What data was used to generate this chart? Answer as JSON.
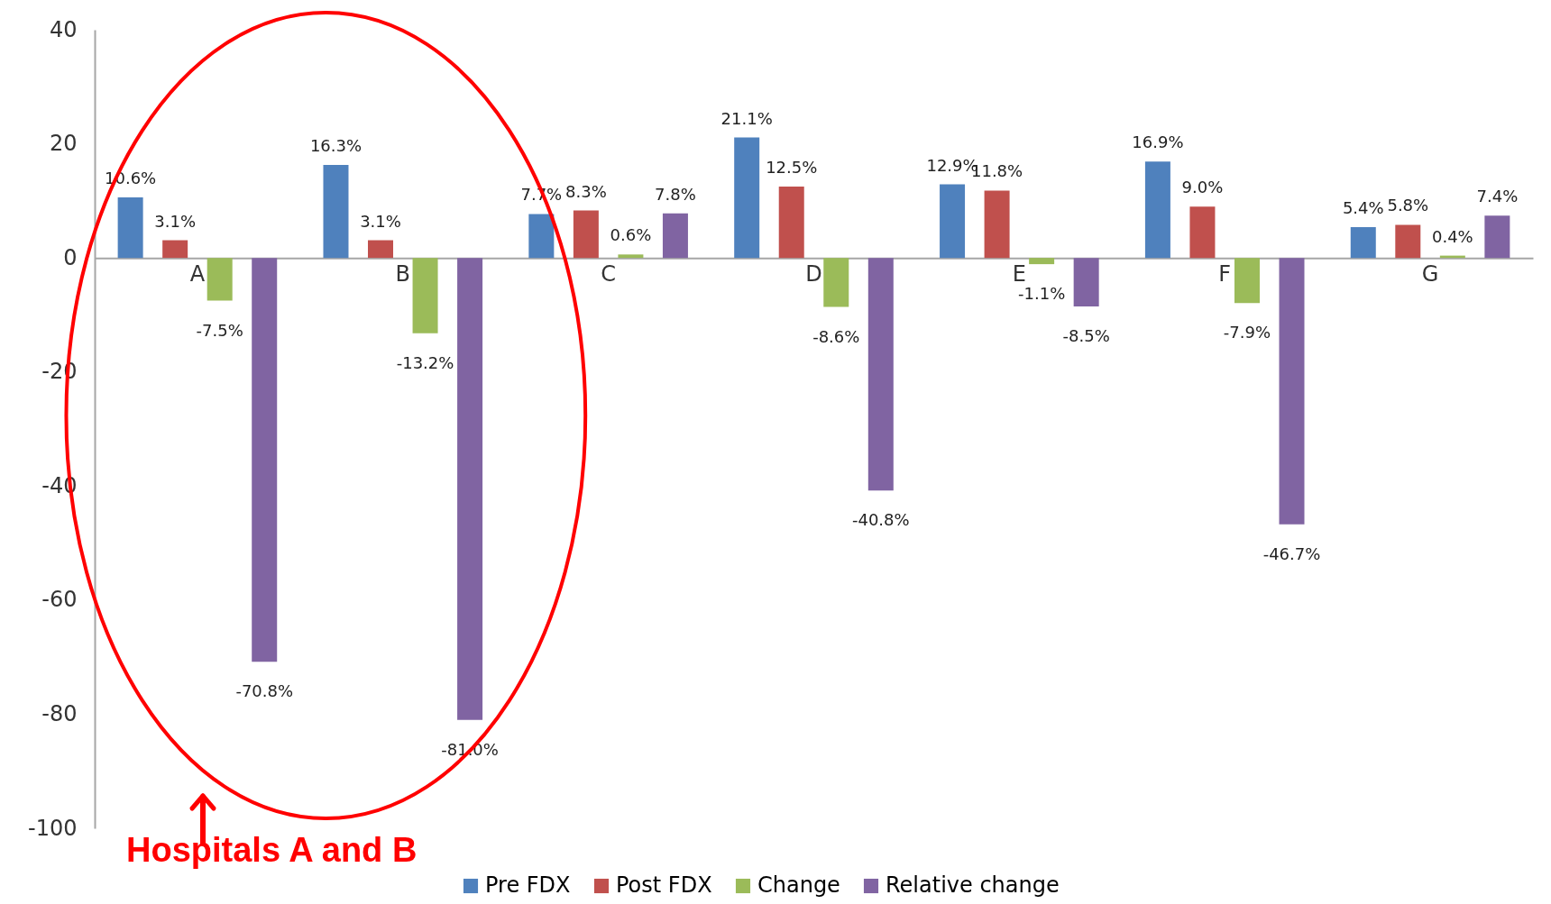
{
  "chart_data": {
    "type": "bar",
    "categories": [
      "A",
      "B",
      "C",
      "D",
      "E",
      "F",
      "G"
    ],
    "series": [
      {
        "name": "Pre FDX",
        "color": "#4f81bd",
        "values": [
          10.6,
          16.3,
          7.7,
          21.1,
          12.9,
          16.9,
          5.4
        ],
        "value_labels": [
          "10.6%",
          "16.3%",
          "7.7%",
          "21.1%",
          "12.9%",
          "16.9%",
          "5.4%"
        ]
      },
      {
        "name": "Post FDX",
        "color": "#c0504d",
        "values": [
          3.1,
          3.1,
          8.3,
          12.5,
          11.8,
          9.0,
          5.8
        ],
        "value_labels": [
          "3.1%",
          "3.1%",
          "8.3%",
          "12.5%",
          "11.8%",
          "9.0%",
          "5.8%"
        ]
      },
      {
        "name": "Change",
        "color": "#9bbb59",
        "values": [
          -7.5,
          -13.2,
          0.6,
          -8.6,
          -1.1,
          -7.9,
          0.4
        ],
        "value_labels": [
          "-7.5%",
          "-13.2%",
          "0.6%",
          "-8.6%",
          "-1.1%",
          "-7.9%",
          "0.4%"
        ]
      },
      {
        "name": "Relative change",
        "color": "#8064a2",
        "values": [
          -70.8,
          -81.0,
          7.8,
          -40.8,
          -8.5,
          -46.7,
          7.4
        ],
        "value_labels": [
          "-70.8%",
          "-81.0%",
          "7.8%",
          "-40.8%",
          "-8.5%",
          "-46.7%",
          "7.4%"
        ]
      }
    ],
    "ylim": [
      -100,
      40
    ],
    "yticks": [
      -100,
      -80,
      -60,
      -40,
      -20,
      0,
      20,
      40
    ],
    "grid": false,
    "legend": "bottom",
    "annotations": [
      "Hospitals A and B"
    ]
  }
}
